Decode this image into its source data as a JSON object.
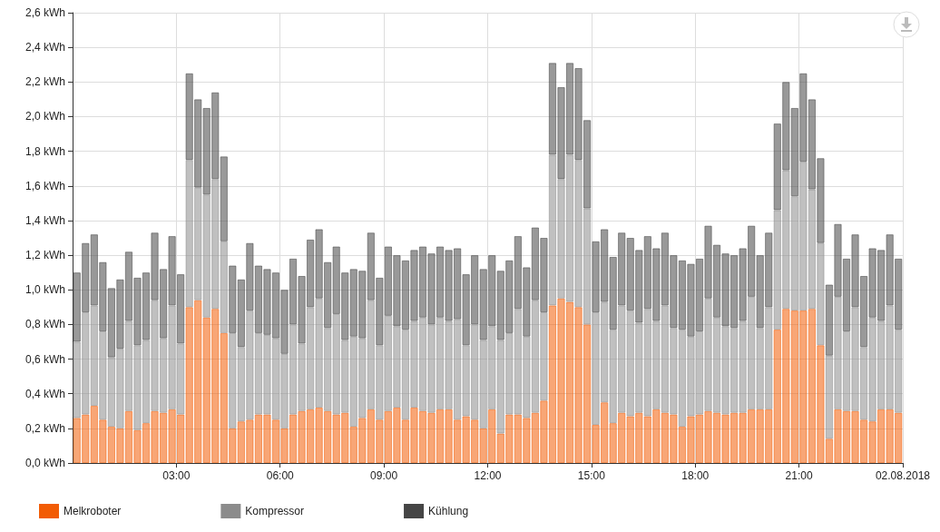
{
  "chart_data": {
    "type": "bar",
    "stacked": true,
    "x": [
      0.125,
      0.375,
      0.625,
      0.875,
      1.125,
      1.375,
      1.625,
      1.875,
      2.125,
      2.375,
      2.625,
      2.875,
      3.125,
      3.375,
      3.625,
      3.875,
      4.125,
      4.375,
      4.625,
      4.875,
      5.125,
      5.375,
      5.625,
      5.875,
      6.125,
      6.375,
      6.625,
      6.875,
      7.125,
      7.375,
      7.625,
      7.875,
      8.125,
      8.375,
      8.625,
      8.875,
      9.125,
      9.375,
      9.625,
      9.875,
      10.125,
      10.375,
      10.625,
      10.875,
      11.125,
      11.375,
      11.625,
      11.875,
      12.125,
      12.375,
      12.625,
      12.875,
      13.125,
      13.375,
      13.625,
      13.875,
      14.125,
      14.375,
      14.625,
      14.875,
      15.125,
      15.375,
      15.625,
      15.875,
      16.125,
      16.375,
      16.625,
      16.875,
      17.125,
      17.375,
      17.625,
      17.875,
      18.125,
      18.375,
      18.625,
      18.875,
      19.125,
      19.375,
      19.625,
      19.875,
      20.125,
      20.375,
      20.625,
      20.875,
      21.125,
      21.375,
      21.625,
      21.875,
      22.125,
      22.375,
      22.625,
      22.875,
      23.125,
      23.375,
      23.625,
      23.875
    ],
    "series": [
      {
        "name": "Melkroboter",
        "color": "#f25c05",
        "values": [
          0.26,
          0.28,
          0.33,
          0.25,
          0.21,
          0.2,
          0.3,
          0.19,
          0.23,
          0.3,
          0.29,
          0.31,
          0.28,
          0.9,
          0.94,
          0.84,
          0.89,
          0.75,
          0.2,
          0.24,
          0.25,
          0.28,
          0.28,
          0.25,
          0.2,
          0.28,
          0.3,
          0.31,
          0.32,
          0.3,
          0.28,
          0.29,
          0.21,
          0.26,
          0.31,
          0.25,
          0.3,
          0.32,
          0.25,
          0.32,
          0.3,
          0.29,
          0.31,
          0.31,
          0.25,
          0.27,
          0.25,
          0.2,
          0.31,
          0.17,
          0.28,
          0.28,
          0.26,
          0.29,
          0.36,
          0.91,
          0.95,
          0.93,
          0.9,
          0.8,
          0.22,
          0.35,
          0.23,
          0.29,
          0.27,
          0.29,
          0.27,
          0.31,
          0.29,
          0.28,
          0.21,
          0.27,
          0.28,
          0.3,
          0.29,
          0.28,
          0.29,
          0.29,
          0.31,
          0.31,
          0.31,
          0.77,
          0.89,
          0.88,
          0.88,
          0.89,
          0.68,
          0.14,
          0.31,
          0.3,
          0.3,
          0.25,
          0.24,
          0.31,
          0.31,
          0.29
        ]
      },
      {
        "name": "Kompressor",
        "color": "#8c8c8c",
        "values": [
          0.44,
          0.59,
          0.58,
          0.51,
          0.4,
          0.46,
          0.52,
          0.49,
          0.48,
          0.64,
          0.43,
          0.6,
          0.41,
          0.85,
          0.65,
          0.71,
          0.75,
          0.53,
          0.55,
          0.43,
          0.63,
          0.47,
          0.46,
          0.47,
          0.43,
          0.52,
          0.39,
          0.59,
          0.63,
          0.48,
          0.58,
          0.42,
          0.52,
          0.46,
          0.63,
          0.43,
          0.55,
          0.47,
          0.52,
          0.5,
          0.54,
          0.51,
          0.53,
          0.51,
          0.58,
          0.41,
          0.55,
          0.51,
          0.48,
          0.54,
          0.47,
          0.61,
          0.47,
          0.65,
          0.51,
          0.87,
          0.69,
          0.85,
          0.85,
          0.67,
          0.65,
          0.58,
          0.54,
          0.62,
          0.61,
          0.52,
          0.62,
          0.51,
          0.62,
          0.5,
          0.56,
          0.46,
          0.48,
          0.65,
          0.55,
          0.51,
          0.49,
          0.53,
          0.65,
          0.47,
          0.59,
          0.69,
          0.8,
          0.66,
          0.86,
          0.69,
          0.59,
          0.48,
          0.65,
          0.46,
          0.6,
          0.42,
          0.6,
          0.51,
          0.6,
          0.48
        ]
      },
      {
        "name": "Kühlung",
        "color": "#454545",
        "values": [
          0.4,
          0.4,
          0.41,
          0.4,
          0.4,
          0.4,
          0.4,
          0.39,
          0.39,
          0.39,
          0.4,
          0.4,
          0.4,
          0.5,
          0.51,
          0.5,
          0.5,
          0.49,
          0.39,
          0.39,
          0.39,
          0.39,
          0.38,
          0.38,
          0.37,
          0.38,
          0.39,
          0.39,
          0.4,
          0.38,
          0.39,
          0.39,
          0.39,
          0.39,
          0.39,
          0.39,
          0.4,
          0.41,
          0.4,
          0.41,
          0.41,
          0.41,
          0.41,
          0.41,
          0.41,
          0.41,
          0.4,
          0.41,
          0.41,
          0.4,
          0.42,
          0.42,
          0.4,
          0.42,
          0.43,
          0.53,
          0.53,
          0.53,
          0.53,
          0.51,
          0.41,
          0.42,
          0.42,
          0.42,
          0.42,
          0.42,
          0.42,
          0.42,
          0.42,
          0.42,
          0.4,
          0.42,
          0.42,
          0.42,
          0.42,
          0.42,
          0.42,
          0.42,
          0.41,
          0.42,
          0.43,
          0.5,
          0.51,
          0.51,
          0.51,
          0.52,
          0.49,
          0.41,
          0.42,
          0.42,
          0.42,
          0.41,
          0.4,
          0.41,
          0.41,
          0.41
        ]
      }
    ],
    "xlim": [
      0,
      24
    ],
    "xticks": [
      {
        "value": 3,
        "label": "03:00"
      },
      {
        "value": 6,
        "label": "06:00"
      },
      {
        "value": 9,
        "label": "09:00"
      },
      {
        "value": 12,
        "label": "12:00"
      },
      {
        "value": 15,
        "label": "15:00"
      },
      {
        "value": 18,
        "label": "18:00"
      },
      {
        "value": 21,
        "label": "21:00"
      },
      {
        "value": 24,
        "label": "02.08.2018"
      }
    ],
    "ylim": [
      0,
      2.6
    ],
    "yticks": [
      {
        "value": 0,
        "label": "0,0 kWh"
      },
      {
        "value": 0.2,
        "label": "0,2 kWh"
      },
      {
        "value": 0.4,
        "label": "0,4 kWh"
      },
      {
        "value": 0.6,
        "label": "0,6 kWh"
      },
      {
        "value": 0.8,
        "label": "0,8 kWh"
      },
      {
        "value": 1.0,
        "label": "1,0 kWh"
      },
      {
        "value": 1.2,
        "label": "1,2 kWh"
      },
      {
        "value": 1.4,
        "label": "1,4 kWh"
      },
      {
        "value": 1.6,
        "label": "1,6 kWh"
      },
      {
        "value": 1.8,
        "label": "1,8 kWh"
      },
      {
        "value": 2.0,
        "label": "2,0 kWh"
      },
      {
        "value": 2.2,
        "label": "2,2 kWh"
      },
      {
        "value": 2.4,
        "label": "2,4 kWh"
      },
      {
        "value": 2.6,
        "label": "2,6 kWh"
      }
    ],
    "grid": true,
    "legend": "bottom left"
  }
}
